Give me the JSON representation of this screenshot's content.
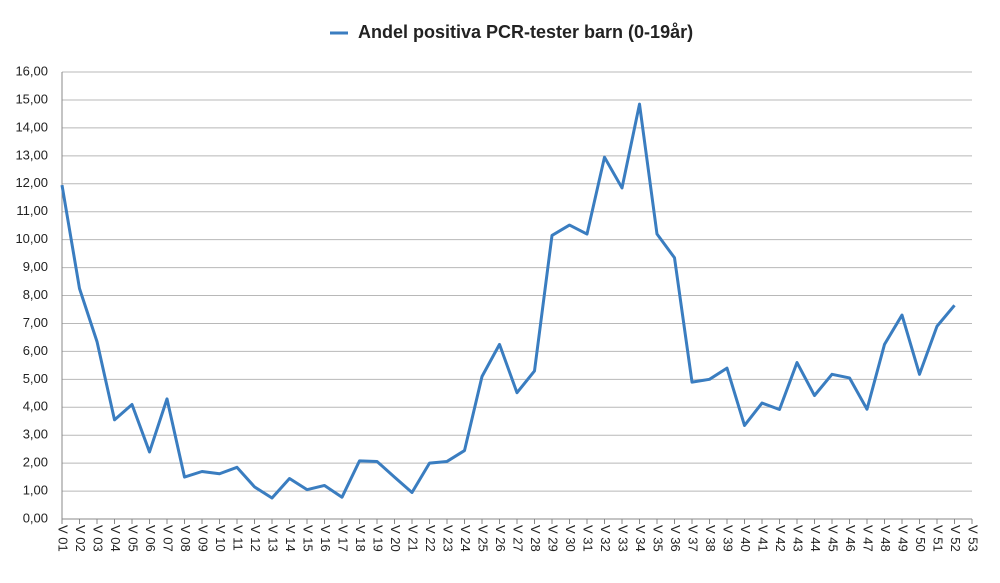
{
  "chart_data": {
    "type": "line",
    "categories": [
      "V 01",
      "V 02",
      "V 03",
      "V 04",
      "V 05",
      "V 06",
      "V 07",
      "V 08",
      "V 09",
      "V 10",
      "V 11",
      "V 12",
      "V 13",
      "V 14",
      "V 15",
      "V 16",
      "V 17",
      "V 18",
      "V 19",
      "V 20",
      "V 21",
      "V 22",
      "V 23",
      "V 24",
      "V 25",
      "V 26",
      "V 27",
      "V 28",
      "V 29",
      "V 30",
      "V 31",
      "V 32",
      "V 33",
      "V 34",
      "V 35",
      "V 36",
      "V 37",
      "V 38",
      "V 39",
      "V 40",
      "V 41",
      "V 42",
      "V 43",
      "V 44",
      "V 45",
      "V 46",
      "V 47",
      "V 48",
      "V 49",
      "V 50",
      "V 51",
      "V 52",
      "V 53"
    ],
    "series": [
      {
        "name": "Andel positiva PCR-tester barn (0-19år)",
        "color": "#3a7dc0",
        "values": [
          11.95,
          8.25,
          6.35,
          3.55,
          4.1,
          2.4,
          4.3,
          1.5,
          1.7,
          1.62,
          1.85,
          1.15,
          0.75,
          1.45,
          1.05,
          1.2,
          0.78,
          2.08,
          2.06,
          1.5,
          0.95,
          2.0,
          2.06,
          2.45,
          5.1,
          6.25,
          4.52,
          5.3,
          10.15,
          10.52,
          10.2,
          12.95,
          11.85,
          14.85,
          10.2,
          9.35,
          4.9,
          5.0,
          5.4,
          3.35,
          4.15,
          3.92,
          5.6,
          4.42,
          5.18,
          5.05,
          3.93,
          6.25,
          7.3,
          5.18,
          6.9,
          7.65,
          null
        ]
      }
    ],
    "ylim": [
      0,
      16
    ],
    "yticks": [
      {
        "value": 0,
        "label": "0,00"
      },
      {
        "value": 1,
        "label": "1,00"
      },
      {
        "value": 2,
        "label": "2,00"
      },
      {
        "value": 3,
        "label": "3,00"
      },
      {
        "value": 4,
        "label": "4,00"
      },
      {
        "value": 5,
        "label": "5,00"
      },
      {
        "value": 6,
        "label": "6,00"
      },
      {
        "value": 7,
        "label": "7,00"
      },
      {
        "value": 8,
        "label": "8,00"
      },
      {
        "value": 9,
        "label": "9,00"
      },
      {
        "value": 10,
        "label": "10,00"
      },
      {
        "value": 11,
        "label": "11,00"
      },
      {
        "value": 12,
        "label": "12,00"
      },
      {
        "value": 13,
        "label": "13,00"
      },
      {
        "value": 14,
        "label": "14,00"
      },
      {
        "value": 15,
        "label": "15,00"
      },
      {
        "value": 16,
        "label": "16,00"
      }
    ],
    "grid": true,
    "legend": "top"
  }
}
